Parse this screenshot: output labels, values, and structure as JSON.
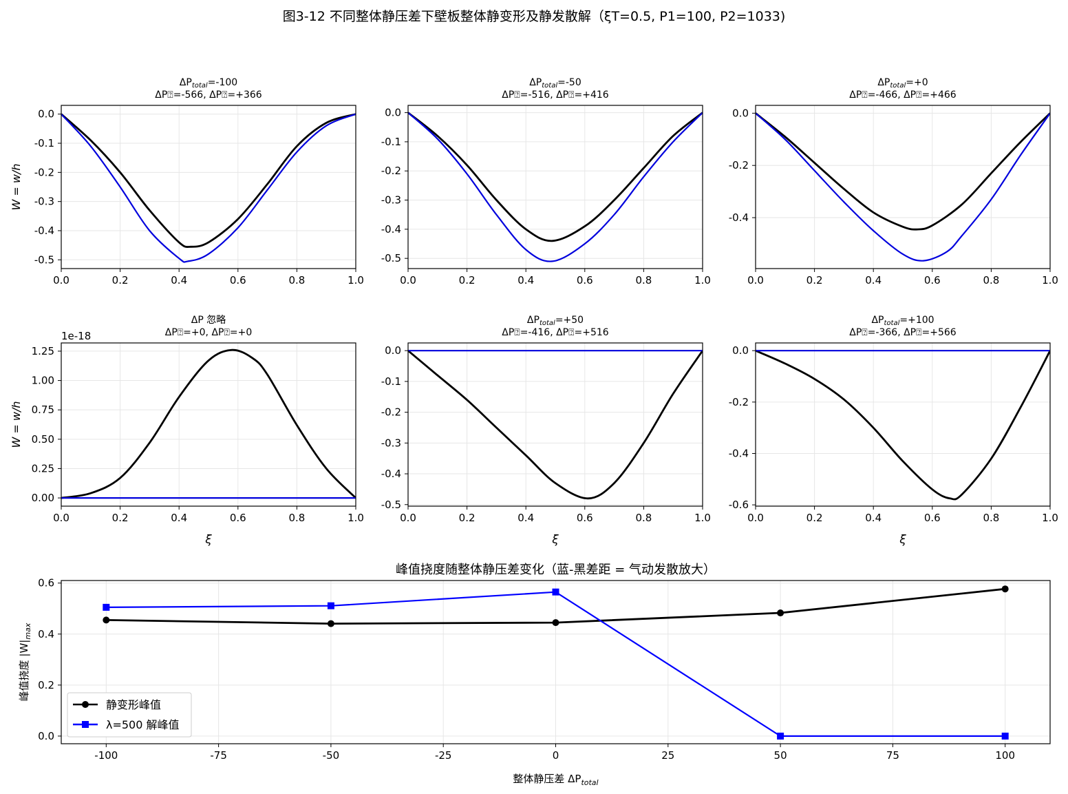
{
  "figure_title": "图3-12  不同整体静压差下壁板整体静变形及静发散解（ξT=0.5, P1=100, P2=1033)",
  "chart_data": [
    {
      "type": "line",
      "title_line1": "ΔP",
      "title_sub": "total",
      "title_rest": "=-100",
      "title_line2": "ΔP⍰=-566, ΔP⍰=+366",
      "ylabel": "W = w/h",
      "xlabel": "",
      "xlim": [
        0,
        1
      ],
      "ylim": [
        -0.53,
        0.03
      ],
      "xticks": [
        0,
        0.2,
        0.4,
        0.6,
        0.8,
        1.0
      ],
      "xtick_labels": [
        "0.0",
        "0.2",
        "0.4",
        "0.6",
        "0.8",
        "1.0"
      ],
      "yticks": [
        0,
        -0.1,
        -0.2,
        -0.3,
        -0.4,
        -0.5
      ],
      "ytick_labels": [
        "0.0",
        "-0.1",
        "-0.2",
        "-0.3",
        "-0.4",
        "-0.5"
      ],
      "offset_text": "",
      "series": [
        {
          "color": "#000000",
          "x": [
            0,
            0.1,
            0.2,
            0.3,
            0.4,
            0.44,
            0.5,
            0.6,
            0.7,
            0.8,
            0.9,
            1.0
          ],
          "y": [
            0,
            -0.09,
            -0.2,
            -0.33,
            -0.44,
            -0.455,
            -0.44,
            -0.36,
            -0.24,
            -0.11,
            -0.03,
            0
          ]
        },
        {
          "color": "#0000dd",
          "x": [
            0,
            0.1,
            0.2,
            0.3,
            0.4,
            0.43,
            0.5,
            0.6,
            0.7,
            0.8,
            0.9,
            1.0
          ],
          "y": [
            0,
            -0.11,
            -0.25,
            -0.4,
            -0.495,
            -0.505,
            -0.48,
            -0.39,
            -0.26,
            -0.13,
            -0.04,
            0
          ]
        }
      ]
    },
    {
      "type": "line",
      "title_line1": "ΔP",
      "title_sub": "total",
      "title_rest": "=-50",
      "title_line2": "ΔP⍰=-516, ΔP⍰=+416",
      "ylabel": "",
      "xlabel": "",
      "xlim": [
        0,
        1
      ],
      "ylim": [
        -0.535,
        0.025
      ],
      "xticks": [
        0,
        0.2,
        0.4,
        0.6,
        0.8,
        1.0
      ],
      "xtick_labels": [
        "0.0",
        "0.2",
        "0.4",
        "0.6",
        "0.8",
        "1.0"
      ],
      "yticks": [
        0,
        -0.1,
        -0.2,
        -0.3,
        -0.4,
        -0.5
      ],
      "ytick_labels": [
        "0.0",
        "-0.1",
        "-0.2",
        "-0.3",
        "-0.4",
        "-0.5"
      ],
      "offset_text": "",
      "series": [
        {
          "color": "#000000",
          "x": [
            0,
            0.1,
            0.2,
            0.3,
            0.4,
            0.49,
            0.6,
            0.7,
            0.8,
            0.9,
            1.0
          ],
          "y": [
            0,
            -0.08,
            -0.18,
            -0.3,
            -0.4,
            -0.44,
            -0.39,
            -0.3,
            -0.19,
            -0.08,
            0
          ]
        },
        {
          "color": "#0000dd",
          "x": [
            0,
            0.1,
            0.2,
            0.3,
            0.4,
            0.49,
            0.6,
            0.7,
            0.8,
            0.9,
            1.0
          ],
          "y": [
            0,
            -0.09,
            -0.21,
            -0.35,
            -0.47,
            -0.51,
            -0.45,
            -0.35,
            -0.22,
            -0.1,
            0
          ]
        }
      ]
    },
    {
      "type": "line",
      "title_line1": "ΔP",
      "title_sub": "total",
      "title_rest": "=+0",
      "title_line2": "ΔP⍰=-466, ΔP⍰=+466",
      "ylabel": "",
      "xlabel": "",
      "xlim": [
        0,
        1
      ],
      "ylim": [
        -0.595,
        0.03
      ],
      "xticks": [
        0,
        0.2,
        0.4,
        0.6,
        0.8,
        1.0
      ],
      "xtick_labels": [
        "0.0",
        "0.2",
        "0.4",
        "0.6",
        "0.8",
        "1.0"
      ],
      "yticks": [
        0,
        -0.2,
        -0.4
      ],
      "ytick_labels": [
        "0.0",
        "-0.2",
        "-0.4"
      ],
      "offset_text": "",
      "series": [
        {
          "color": "#000000",
          "x": [
            0,
            0.1,
            0.2,
            0.3,
            0.4,
            0.5,
            0.55,
            0.6,
            0.7,
            0.8,
            0.9,
            1.0
          ],
          "y": [
            0,
            -0.09,
            -0.19,
            -0.29,
            -0.38,
            -0.435,
            -0.445,
            -0.43,
            -0.35,
            -0.23,
            -0.11,
            0
          ]
        },
        {
          "color": "#0000dd",
          "x": [
            0,
            0.1,
            0.2,
            0.3,
            0.4,
            0.5,
            0.57,
            0.65,
            0.7,
            0.8,
            0.9,
            1.0
          ],
          "y": [
            0,
            -0.1,
            -0.22,
            -0.34,
            -0.45,
            -0.54,
            -0.565,
            -0.53,
            -0.47,
            -0.33,
            -0.16,
            0
          ]
        }
      ]
    },
    {
      "type": "line",
      "title_line1": "ΔP 忽略",
      "title_sub": "",
      "title_rest": "",
      "title_line2": "ΔP⍰=+0, ΔP⍰=+0",
      "ylabel": "W = w/h",
      "xlabel": "ξ",
      "xlim": [
        0,
        1
      ],
      "ylim": [
        -0.07,
        1.32
      ],
      "xticks": [
        0,
        0.2,
        0.4,
        0.6,
        0.8,
        1.0
      ],
      "xtick_labels": [
        "0.0",
        "0.2",
        "0.4",
        "0.6",
        "0.8",
        "1.0"
      ],
      "yticks": [
        0,
        0.25,
        0.5,
        0.75,
        1.0,
        1.25
      ],
      "ytick_labels": [
        "0.00",
        "0.25",
        "0.50",
        "0.75",
        "1.00",
        "1.25"
      ],
      "offset_text": "1e-18",
      "series": [
        {
          "color": "#000000",
          "x": [
            0,
            0.1,
            0.2,
            0.3,
            0.4,
            0.5,
            0.58,
            0.65,
            0.7,
            0.8,
            0.9,
            1.0
          ],
          "y": [
            0,
            0.04,
            0.17,
            0.47,
            0.86,
            1.17,
            1.26,
            1.19,
            1.05,
            0.62,
            0.25,
            0
          ]
        },
        {
          "color": "#0000dd",
          "x": [
            0,
            1.0
          ],
          "y": [
            0,
            0
          ]
        }
      ]
    },
    {
      "type": "line",
      "title_line1": "ΔP",
      "title_sub": "total",
      "title_rest": "=+50",
      "title_line2": "ΔP⍰=-416, ΔP⍰=+516",
      "ylabel": "",
      "xlabel": "ξ",
      "xlim": [
        0,
        1
      ],
      "ylim": [
        -0.505,
        0.025
      ],
      "xticks": [
        0,
        0.2,
        0.4,
        0.6,
        0.8,
        1.0
      ],
      "xtick_labels": [
        "0.0",
        "0.2",
        "0.4",
        "0.6",
        "0.8",
        "1.0"
      ],
      "yticks": [
        0,
        -0.1,
        -0.2,
        -0.3,
        -0.4,
        -0.5
      ],
      "ytick_labels": [
        "0.0",
        "-0.1",
        "-0.2",
        "-0.3",
        "-0.4",
        "-0.5"
      ],
      "offset_text": "",
      "series": [
        {
          "color": "#000000",
          "x": [
            0,
            0.1,
            0.2,
            0.3,
            0.4,
            0.5,
            0.61,
            0.7,
            0.8,
            0.9,
            1.0
          ],
          "y": [
            0,
            -0.08,
            -0.16,
            -0.25,
            -0.34,
            -0.43,
            -0.48,
            -0.43,
            -0.3,
            -0.14,
            0
          ]
        },
        {
          "color": "#0000dd",
          "x": [
            0,
            1.0
          ],
          "y": [
            0,
            0
          ]
        }
      ]
    },
    {
      "type": "line",
      "title_line1": "ΔP",
      "title_sub": "total",
      "title_rest": "=+100",
      "title_line2": "ΔP⍰=-366, ΔP⍰=+566",
      "ylabel": "",
      "xlabel": "ξ",
      "xlim": [
        0,
        1
      ],
      "ylim": [
        -0.605,
        0.03
      ],
      "xticks": [
        0,
        0.2,
        0.4,
        0.6,
        0.8,
        1.0
      ],
      "xtick_labels": [
        "0.0",
        "0.2",
        "0.4",
        "0.6",
        "0.8",
        "1.0"
      ],
      "yticks": [
        0,
        -0.2,
        -0.4,
        -0.6
      ],
      "ytick_labels": [
        "0.0",
        "-0.2",
        "-0.4",
        "-0.6"
      ],
      "offset_text": "",
      "series": [
        {
          "color": "#000000",
          "x": [
            0,
            0.1,
            0.2,
            0.3,
            0.4,
            0.5,
            0.6,
            0.66,
            0.7,
            0.8,
            0.9,
            1.0
          ],
          "y": [
            0,
            -0.05,
            -0.11,
            -0.19,
            -0.3,
            -0.43,
            -0.54,
            -0.575,
            -0.56,
            -0.42,
            -0.22,
            0
          ]
        },
        {
          "color": "#0000dd",
          "x": [
            0,
            1.0
          ],
          "y": [
            0,
            0
          ]
        }
      ]
    },
    {
      "type": "line",
      "title": "峰值挠度随整体静压差变化（蓝-黑差距 = 气动发散放大）",
      "ylabel": "峰值挠度 |W|",
      "ylabel_sub": "max",
      "xlabel": "整体静压差 ΔP",
      "xlabel_sub": "total",
      "xlim": [
        -110,
        110
      ],
      "ylim": [
        -0.03,
        0.61
      ],
      "xticks": [
        -100,
        -75,
        -50,
        -25,
        0,
        25,
        50,
        75,
        100
      ],
      "xtick_labels": [
        "-100",
        "-75",
        "-50",
        "-25",
        "0",
        "25",
        "50",
        "75",
        "100"
      ],
      "yticks": [
        0,
        0.2,
        0.4,
        0.6
      ],
      "ytick_labels": [
        "0.0",
        "0.2",
        "0.4",
        "0.6"
      ],
      "legend_position": "lower-left",
      "series": [
        {
          "name": "静变形峰值",
          "color": "#000000",
          "marker": "circle",
          "x": [
            -100,
            -50,
            0,
            50,
            100
          ],
          "y": [
            0.455,
            0.441,
            0.445,
            0.483,
            0.577
          ]
        },
        {
          "name": "λ=500 解峰值",
          "color": "#0000ff",
          "marker": "square",
          "x": [
            -100,
            -50,
            0,
            50,
            100
          ],
          "y": [
            0.505,
            0.511,
            0.565,
            0.0,
            0.0
          ]
        }
      ]
    }
  ]
}
